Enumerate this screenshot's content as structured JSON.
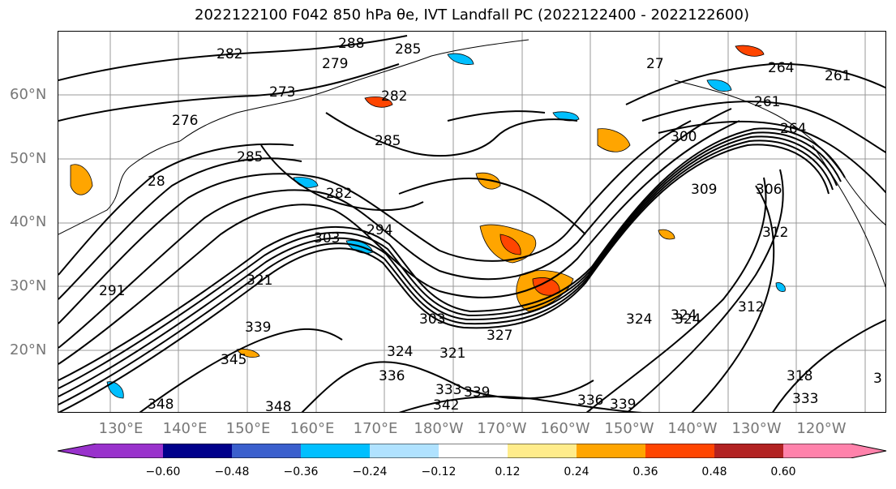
{
  "title": "2022122100 F042 850 hPa θe, IVT Landfall PC (2022122400 - 2022122600)",
  "lat_labels": [
    "60°N",
    "50°N",
    "40°N",
    "30°N",
    "20°N"
  ],
  "lon_labels": [
    "130°E",
    "140°E",
    "150°E",
    "160°E",
    "170°E",
    "180°W",
    "170°W",
    "160°W",
    "150°W",
    "140°W",
    "130°W",
    "120°W"
  ],
  "contour_labels": [
    "288",
    "282",
    "279",
    "285",
    "276",
    "273",
    "282",
    "285",
    "28",
    "285",
    "282",
    "294",
    "303",
    "312",
    "309",
    "300",
    "306",
    "261",
    "264",
    "261",
    "264",
    "27",
    "303",
    "327",
    "324",
    "321",
    "324",
    "339",
    "345",
    "336",
    "333",
    "339",
    "342",
    "348",
    "348",
    "336",
    "339",
    "333",
    "312",
    "324",
    "324",
    "291",
    "321",
    "318",
    "3"
  ],
  "colorbar": {
    "ticks": [
      "−0.60",
      "−0.48",
      "−0.36",
      "−0.24",
      "−0.12",
      "0.12",
      "0.24",
      "0.36",
      "0.48",
      "0.60"
    ],
    "colors": [
      "#9932cc",
      "#00008b",
      "#3a5fcd",
      "#00bfff",
      "#b0e2ff",
      "#ffffff",
      "#ffec8b",
      "#ffa500",
      "#ff4500",
      "#b22222",
      "#ff82ab"
    ]
  }
}
